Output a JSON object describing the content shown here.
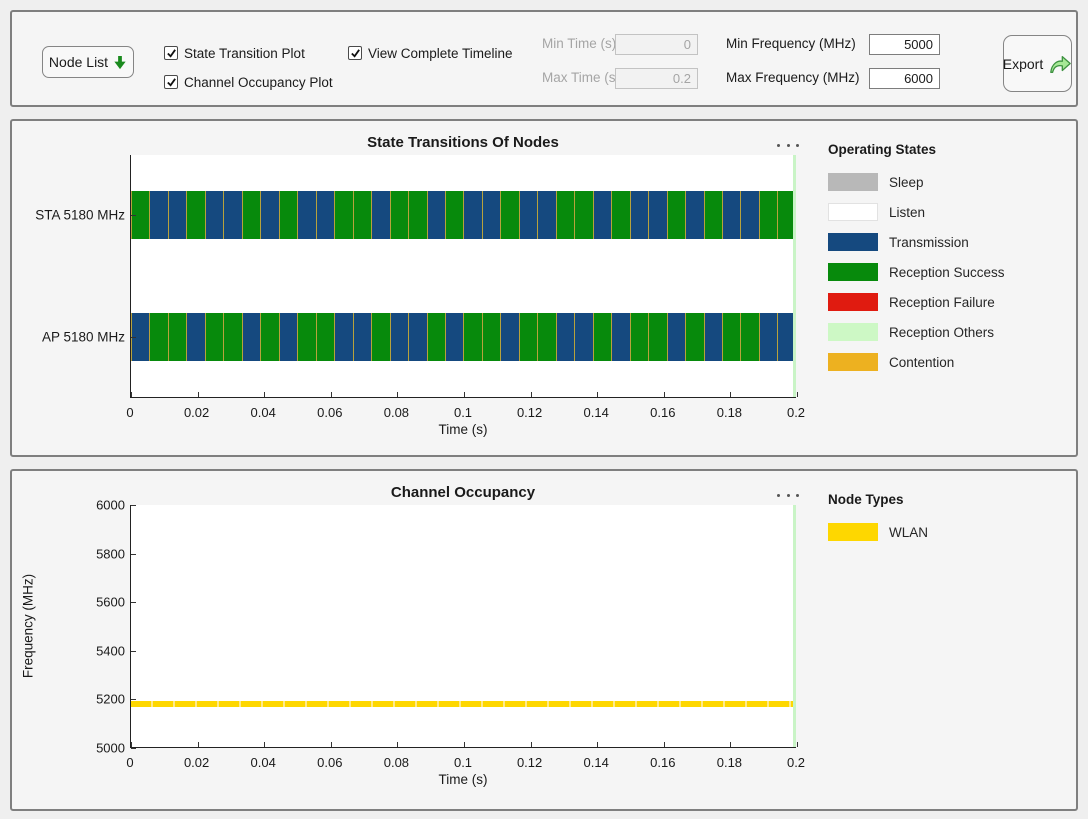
{
  "toolbar": {
    "node_list_label": "Node List",
    "export_label": "Export",
    "checkboxes": [
      {
        "label": "State Transition Plot",
        "checked": true
      },
      {
        "label": "Channel Occupancy Plot",
        "checked": true
      },
      {
        "label": "View Complete Timeline",
        "checked": true
      }
    ],
    "fields": [
      {
        "label": "Min Time (s)",
        "value": "0",
        "disabled": true
      },
      {
        "label": "Max Time (s)",
        "value": "0.2",
        "disabled": true
      },
      {
        "label": "Min Frequency (MHz)",
        "value": "5000",
        "disabled": false
      },
      {
        "label": "Max Frequency (MHz)",
        "value": "6000",
        "disabled": false
      }
    ]
  },
  "icons": {
    "node_list_arrow": "thick-down-arrow-green",
    "export_arrow": "curved-share-arrow-green",
    "panel_menu": "ellipsis-horizontal"
  },
  "colors": {
    "panel_border": "#7f7f7f",
    "plot_end_marker": "#c9f4c6",
    "segment_separator": "#b7a23c",
    "band_gap": "#ffe98a"
  },
  "state_colors": {
    "SLEEP": "#b8b8b8",
    "LISTEN": "#ffffff",
    "TX": "#15497f",
    "RS": "#078a0c",
    "RF": "#e01b10",
    "RO": "#cdf8c5",
    "CONT": "#edb120"
  },
  "chart_data": [
    {
      "type": "timeline",
      "title": "State Transitions Of Nodes",
      "xlabel": "Time (s)",
      "xlim": [
        0,
        0.2
      ],
      "xtick_labels": [
        "0",
        "0.02",
        "0.04",
        "0.06",
        "0.08",
        "0.1",
        "0.12",
        "0.14",
        "0.16",
        "0.18",
        "0.2"
      ],
      "grid": false,
      "legend": {
        "title": "Operating States",
        "position": "right",
        "items": [
          {
            "label": "Sleep",
            "color": "#b8b8b8"
          },
          {
            "label": "Listen",
            "color": "#ffffff"
          },
          {
            "label": "Transmission",
            "color": "#15497f"
          },
          {
            "label": "Reception Success",
            "color": "#078a0c"
          },
          {
            "label": "Reception Failure",
            "color": "#e01b10"
          },
          {
            "label": "Reception Others",
            "color": "#cdf8c5"
          },
          {
            "label": "Contention",
            "color": "#edb120"
          }
        ]
      },
      "segment_separator_state": "CONT",
      "rows": [
        {
          "label": "STA 5180 MHz",
          "segments": [
            "RS",
            "TX",
            "TX",
            "RS",
            "TX",
            "TX",
            "RS",
            "TX",
            "RS",
            "TX",
            "TX",
            "RS",
            "RS",
            "TX",
            "RS",
            "RS",
            "TX",
            "RS",
            "TX",
            "TX",
            "RS",
            "TX",
            "TX",
            "RS",
            "RS",
            "TX",
            "RS",
            "TX",
            "TX",
            "RS",
            "TX",
            "RS",
            "TX",
            "TX",
            "RS",
            "RS"
          ]
        },
        {
          "label": "AP 5180 MHz",
          "segments": [
            "TX",
            "RS",
            "RS",
            "TX",
            "RS",
            "RS",
            "TX",
            "RS",
            "TX",
            "RS",
            "RS",
            "TX",
            "TX",
            "RS",
            "TX",
            "TX",
            "RS",
            "TX",
            "RS",
            "RS",
            "TX",
            "RS",
            "RS",
            "TX",
            "TX",
            "RS",
            "TX",
            "RS",
            "RS",
            "TX",
            "RS",
            "TX",
            "RS",
            "RS",
            "TX",
            "TX"
          ]
        }
      ]
    },
    {
      "type": "occupancy",
      "title": "Channel Occupancy",
      "xlabel": "Time (s)",
      "ylabel": "Frequency (MHz)",
      "xlim": [
        0,
        0.2
      ],
      "ylim": [
        5000,
        6000
      ],
      "xtick_labels": [
        "0",
        "0.02",
        "0.04",
        "0.06",
        "0.08",
        "0.1",
        "0.12",
        "0.14",
        "0.16",
        "0.18",
        "0.2"
      ],
      "ytick_labels": [
        "5000",
        "5200",
        "5400",
        "5600",
        "5800",
        "6000"
      ],
      "grid": false,
      "legend": {
        "title": "Node Types",
        "position": "right",
        "items": [
          {
            "label": "WLAN",
            "color": "#fed700"
          }
        ]
      },
      "bands": [
        {
          "node_type": "WLAN",
          "freq_center_mhz": 5180,
          "freq_low_mhz": 5170,
          "freq_high_mhz": 5190,
          "t_start": 0,
          "t_end": 0.2,
          "color": "#fed700"
        }
      ]
    }
  ]
}
